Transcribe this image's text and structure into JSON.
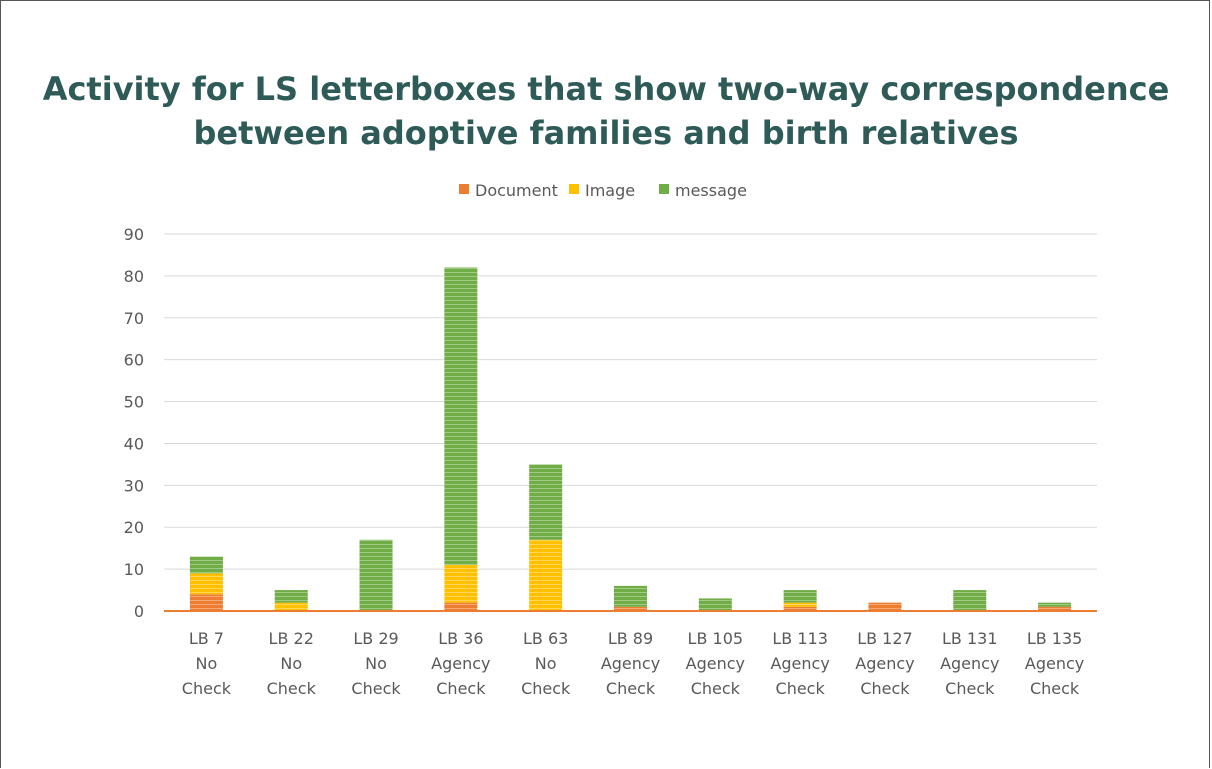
{
  "title_line1": "Activity for LS letterboxes that show two-way correspondence",
  "title_line2": "between adoptive families and birth relatives",
  "chart_data": {
    "type": "bar",
    "stacked": true,
    "title": "Activity for LS letterboxes that show two-way correspondence between adoptive families and birth relatives",
    "categories": [
      [
        "LB 7",
        "No",
        "Check"
      ],
      [
        "LB 22",
        "No",
        "Check"
      ],
      [
        "LB 29",
        "No",
        "Check"
      ],
      [
        "LB 36",
        "Agency",
        "Check"
      ],
      [
        "LB 63",
        "No",
        "Check"
      ],
      [
        "LB 89",
        "Agency",
        "Check"
      ],
      [
        "LB 105",
        "Agency",
        "Check"
      ],
      [
        "LB 113",
        "Agency",
        "Check"
      ],
      [
        "LB 127",
        "Agency",
        "Check"
      ],
      [
        "LB 131",
        "Agency",
        "Check"
      ],
      [
        "LB 135",
        "Agency",
        "Check"
      ]
    ],
    "series": [
      {
        "name": "Document",
        "color": "#ED7D31",
        "values": [
          4,
          0,
          0,
          2,
          0,
          1,
          0,
          1,
          2,
          0,
          1
        ]
      },
      {
        "name": "Image",
        "color": "#FFC000",
        "values": [
          5,
          2,
          0,
          9,
          17,
          0,
          0,
          1,
          0,
          0,
          0
        ]
      },
      {
        "name": "message",
        "color": "#70AD47",
        "values": [
          4,
          3,
          17,
          71,
          18,
          5,
          3,
          3,
          0,
          5,
          1
        ]
      }
    ],
    "ylim": [
      0,
      90
    ],
    "yticks": [
      0,
      10,
      20,
      30,
      40,
      50,
      60,
      70,
      80,
      90
    ],
    "xlabel": "",
    "ylabel": "",
    "grid": true,
    "legend_position": "top"
  }
}
